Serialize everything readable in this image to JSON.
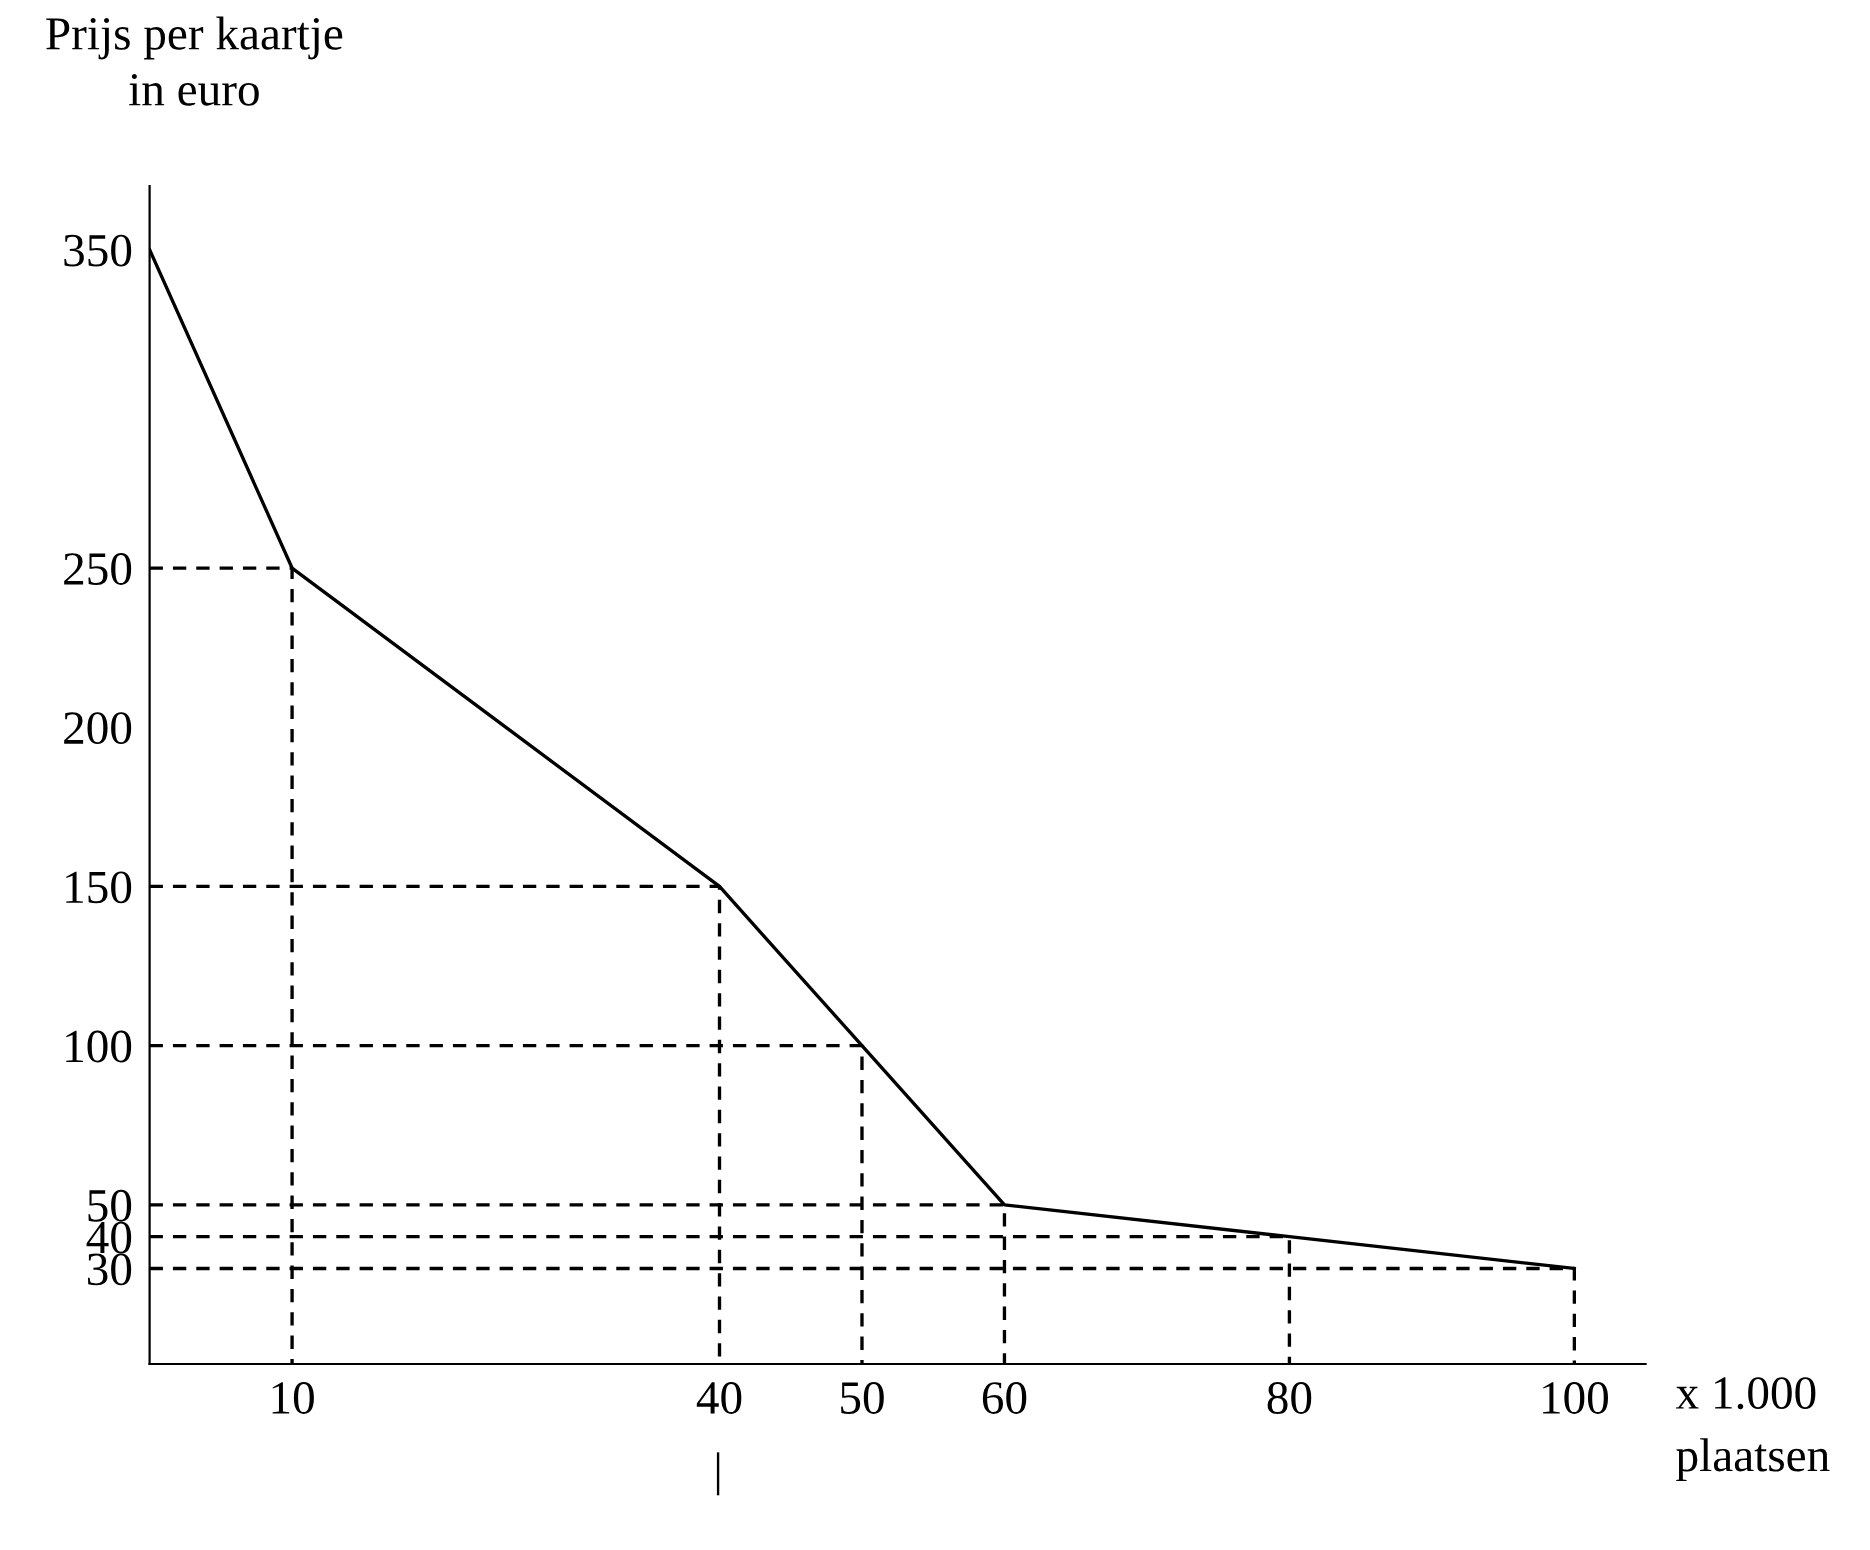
{
  "chart_data": {
    "type": "line",
    "ylabel": "Prijs per kaartje\nin euro",
    "xlabel": "x 1.000\nplaatsen",
    "annotations": [
      "|"
    ],
    "xlim": [
      0,
      105
    ],
    "ylim": [
      0,
      370
    ],
    "xticks": [
      10,
      40,
      50,
      60,
      80,
      100
    ],
    "yticks": [
      30,
      40,
      50,
      100,
      150,
      200,
      250,
      350
    ],
    "grid": false,
    "legend": false,
    "marker": "none",
    "series": [
      {
        "color": "#000000",
        "line_style": "solid",
        "x": [
          0,
          10,
          40,
          50,
          60,
          80,
          100
        ],
        "values": [
          350,
          250,
          150,
          100,
          50,
          40,
          30
        ]
      },
      {
        "color": "#000000",
        "line_style": "dashed",
        "x": [
          0,
          10,
          10
        ],
        "values": [
          250,
          250,
          0
        ]
      },
      {
        "color": "#000000",
        "line_style": "dashed",
        "x": [
          0,
          40,
          40
        ],
        "values": [
          150,
          150,
          0
        ]
      },
      {
        "color": "#000000",
        "line_style": "dashed",
        "x": [
          0,
          50,
          50
        ],
        "values": [
          100,
          100,
          0
        ]
      },
      {
        "color": "#000000",
        "line_style": "dashed",
        "x": [
          0,
          60,
          60
        ],
        "values": [
          50,
          50,
          0
        ]
      },
      {
        "color": "#000000",
        "line_style": "dashed",
        "x": [
          0,
          80,
          80
        ],
        "values": [
          40,
          40,
          0
        ]
      },
      {
        "color": "#000000",
        "line_style": "dashed",
        "x": [
          0,
          100,
          100
        ],
        "values": [
          30,
          30,
          0
        ]
      }
    ]
  }
}
